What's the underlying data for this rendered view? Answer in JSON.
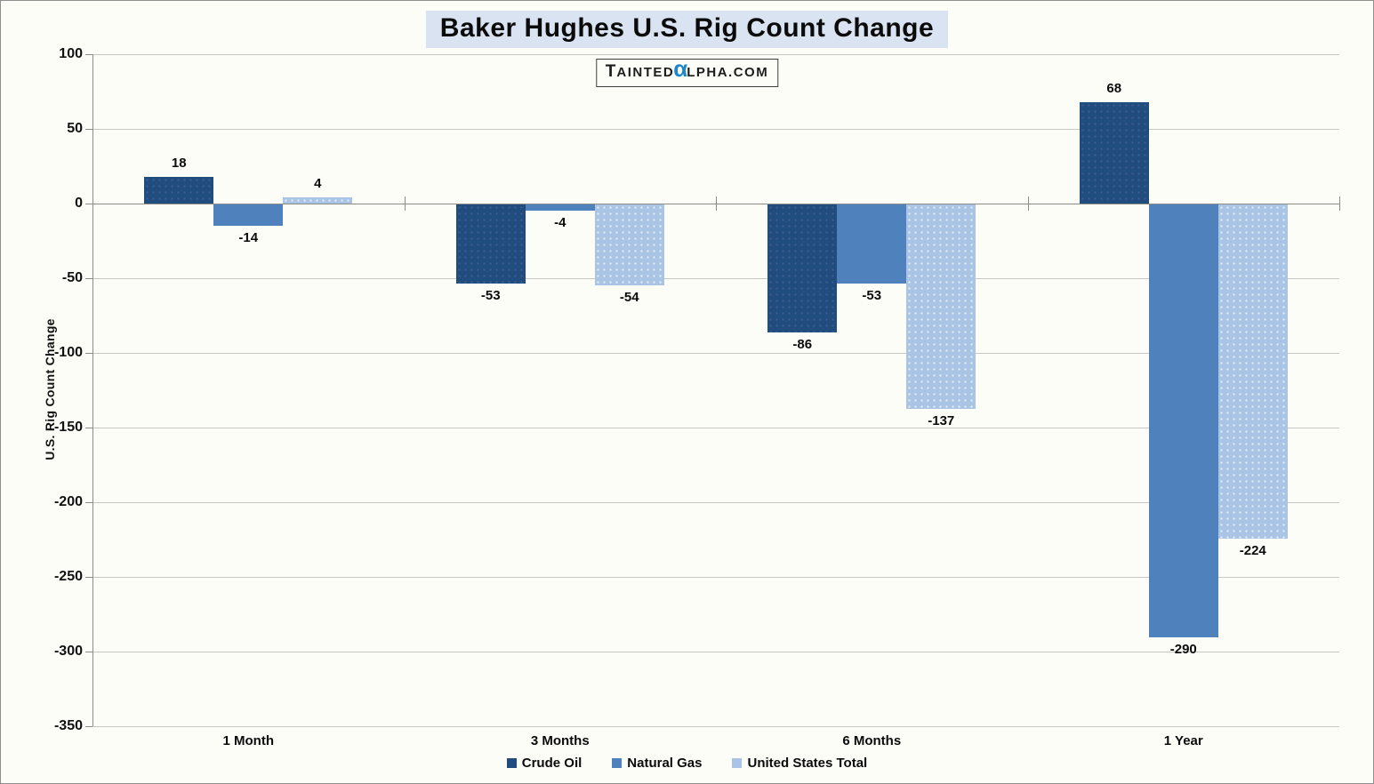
{
  "title": "Baker Hughes U.S. Rig Count Change",
  "watermark": {
    "prefix_initial": "T",
    "prefix_rest": "AINTED",
    "alpha": "α",
    "suffix": "LPHA.COM",
    "alpha_color": "#1E87C9"
  },
  "y_axis": {
    "title": "U.S. Rig Count Change",
    "ticks": [
      100,
      50,
      0,
      -50,
      -100,
      -150,
      -200,
      -250,
      -300,
      -350
    ]
  },
  "chart_data": {
    "type": "bar",
    "title": "Baker Hughes U.S. Rig Count Change",
    "xlabel": "",
    "ylabel": "U.S. Rig Count Change",
    "ylim": [
      -350,
      100
    ],
    "grid": true,
    "legend_position": "bottom",
    "categories": [
      "1 Month",
      "3 Months",
      "6 Months",
      "1 Year"
    ],
    "series": [
      {
        "name": "Crude Oil",
        "color": "#214C7E",
        "style": "dark",
        "values": [
          18,
          -53,
          -86,
          68
        ]
      },
      {
        "name": "Natural Gas",
        "color": "#4F81BD",
        "style": "mid",
        "values": [
          -14,
          -4,
          -53,
          -290
        ]
      },
      {
        "name": "United States Total",
        "color": "#A9C4E4",
        "style": "light",
        "values": [
          4,
          -54,
          -137,
          -224
        ]
      }
    ]
  }
}
